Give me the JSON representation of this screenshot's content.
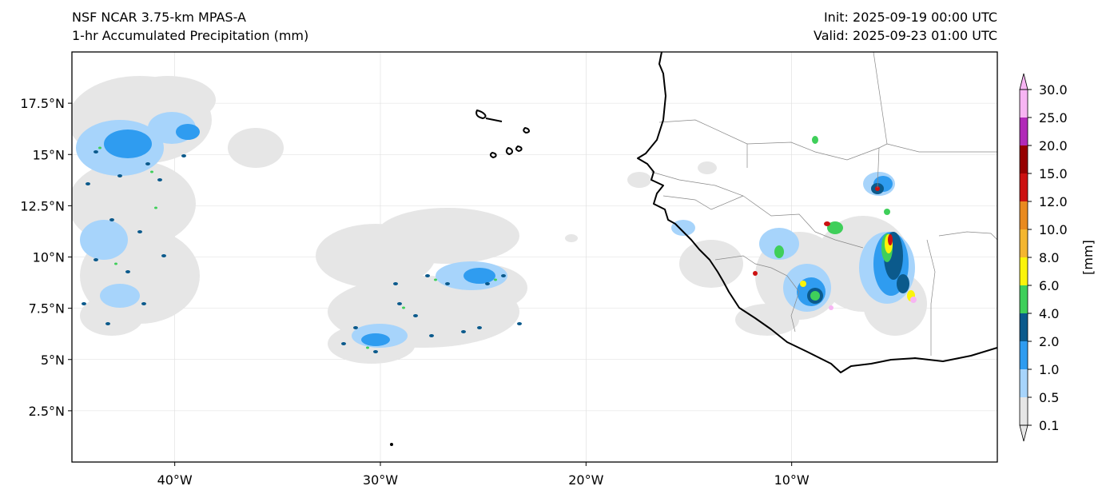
{
  "title": {
    "model": "NSF NCAR 3.75-km MPAS-A",
    "field": "1-hr Accumulated Precipitation (mm)",
    "init": "Init: 2025-09-19 00:00 UTC",
    "valid": "Valid: 2025-09-23 01:00 UTC"
  },
  "map": {
    "lon_range": [
      -45,
      0
    ],
    "lat_range": [
      0,
      20
    ],
    "lat_ticks": [
      {
        "value": 17.5,
        "label": "17.5°N"
      },
      {
        "value": 15,
        "label": "15°N"
      },
      {
        "value": 12.5,
        "label": "12.5°N"
      },
      {
        "value": 10,
        "label": "10°N"
      },
      {
        "value": 7.5,
        "label": "7.5°N"
      },
      {
        "value": 5,
        "label": "5°N"
      },
      {
        "value": 2.5,
        "label": "2.5°N"
      }
    ],
    "lon_ticks": [
      {
        "value": -40,
        "label": "40°W"
      },
      {
        "value": -30,
        "label": "30°W"
      },
      {
        "value": -20,
        "label": "20°W"
      },
      {
        "value": -10,
        "label": "10°W"
      }
    ]
  },
  "colorbar": {
    "label": "[mm]",
    "levels": [
      "0.1",
      "0.5",
      "1.0",
      "2.0",
      "4.0",
      "6.0",
      "8.0",
      "10.0",
      "12.0",
      "15.0",
      "20.0",
      "25.0",
      "30.0"
    ],
    "colors": [
      "#e6e6e6",
      "#a7d4fb",
      "#2f9cf0",
      "#0b5a8c",
      "#3fcf5a",
      "#fbf40a",
      "#f4b630",
      "#e98a1f",
      "#cc1111",
      "#960000",
      "#b12ab8",
      "#f7b5f3"
    ]
  },
  "colors": {
    "land_outline": "#000000",
    "border": "#888888",
    "grid": "#dddddd"
  }
}
